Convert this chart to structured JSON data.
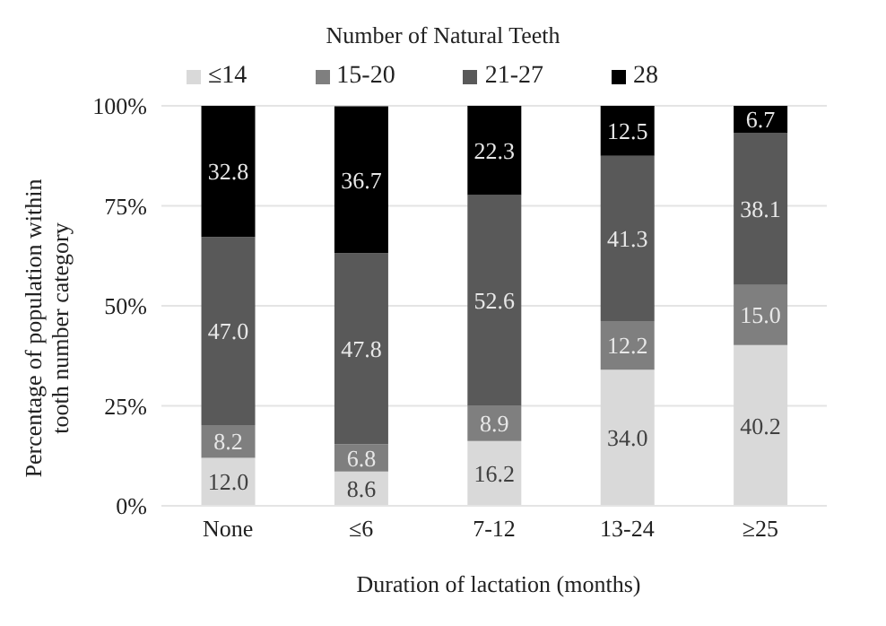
{
  "chart_data": {
    "type": "bar",
    "stacked": true,
    "title": "Number of Natural Teeth",
    "xlabel": "Duration of lactation (months)",
    "ylabel": "Percentage  of population within tooth number category",
    "categories": [
      "None",
      "≤6",
      "7-12",
      "13-24",
      "≥25"
    ],
    "series": [
      {
        "name": "≤14",
        "color": "#d9d9d9",
        "values": [
          12.0,
          8.6,
          16.2,
          34.0,
          40.2
        ],
        "value_labels": [
          "12.0",
          "8.6",
          "16.2",
          "34.0",
          "40.2"
        ]
      },
      {
        "name": "15-20",
        "color": "#7f7f7f",
        "values": [
          8.2,
          6.8,
          8.9,
          12.2,
          15.0
        ],
        "value_labels": [
          "8.2",
          "6.8",
          "8.9",
          "12.2",
          "15.0"
        ]
      },
      {
        "name": "21-27",
        "color": "#595959",
        "values": [
          47.0,
          47.8,
          52.6,
          41.3,
          38.1
        ],
        "value_labels": [
          "47.0",
          "47.8",
          "52.6",
          "41.3",
          "38.1"
        ]
      },
      {
        "name": "28",
        "color": "#000000",
        "values": [
          32.8,
          36.7,
          22.3,
          12.5,
          6.7
        ],
        "value_labels": [
          "32.8",
          "36.7",
          "22.3",
          "12.5",
          "6.7"
        ]
      }
    ],
    "ylim": [
      0,
      100
    ],
    "yticks": [
      {
        "value": 0,
        "label": "0%"
      },
      {
        "value": 25,
        "label": "25%"
      },
      {
        "value": 50,
        "label": "50%"
      },
      {
        "value": 75,
        "label": "75%"
      },
      {
        "value": 100,
        "label": "100%"
      }
    ],
    "grid": "y",
    "legend": "top"
  }
}
